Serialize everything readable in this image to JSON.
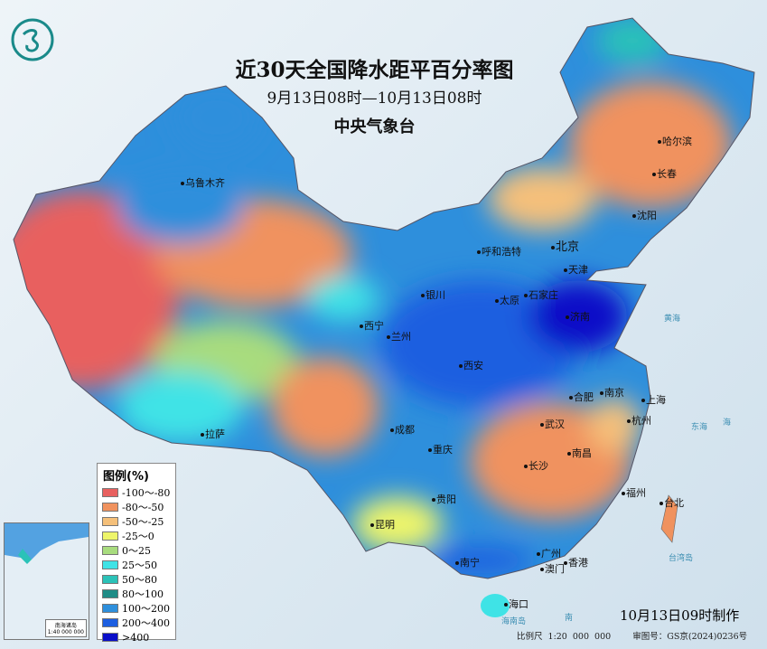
{
  "header": {
    "title": "近30天全国降水距平百分率图",
    "period": "9月13日08时—10月13日08时",
    "issuer": "中央气象台"
  },
  "legend": {
    "title": "图例(%)",
    "items": [
      {
        "label": "-100～-80",
        "color": "#e8605f"
      },
      {
        "label": "-80～-50",
        "color": "#f0925e"
      },
      {
        "label": "-50～-25",
        "color": "#f5c07a"
      },
      {
        "label": "-25～0",
        "color": "#eef56a"
      },
      {
        "label": "0～25",
        "color": "#a8dc7e"
      },
      {
        "label": "25～50",
        "color": "#3fe3e6"
      },
      {
        "label": "50～80",
        "color": "#2bc2b8"
      },
      {
        "label": "80～100",
        "color": "#1f8c86"
      },
      {
        "label": "100～200",
        "color": "#2e8fdc"
      },
      {
        "label": "200～400",
        "color": "#1c5ee0"
      },
      {
        "label": ">400",
        "color": "#0a0ec8"
      }
    ]
  },
  "cities": [
    {
      "name": "乌鲁木齐"
    },
    {
      "name": "哈尔滨"
    },
    {
      "name": "长春"
    },
    {
      "name": "沈阳"
    },
    {
      "name": "呼和浩特"
    },
    {
      "name": "北京"
    },
    {
      "name": "天津"
    },
    {
      "name": "银川"
    },
    {
      "name": "太原"
    },
    {
      "name": "石家庄"
    },
    {
      "name": "济南"
    },
    {
      "name": "西宁"
    },
    {
      "name": "兰州"
    },
    {
      "name": "西安"
    },
    {
      "name": "合肥"
    },
    {
      "name": "南京"
    },
    {
      "name": "上海"
    },
    {
      "name": "杭州"
    },
    {
      "name": "武汉"
    },
    {
      "name": "成都"
    },
    {
      "name": "重庆"
    },
    {
      "name": "拉萨"
    },
    {
      "name": "长沙"
    },
    {
      "name": "南昌"
    },
    {
      "name": "福州"
    },
    {
      "name": "台北"
    },
    {
      "name": "贵阳"
    },
    {
      "name": "昆明"
    },
    {
      "name": "南宁"
    },
    {
      "name": "广州"
    },
    {
      "name": "香港"
    },
    {
      "name": "澳门"
    },
    {
      "name": "海口"
    }
  ],
  "seas": [
    "黄海",
    "东海",
    "海",
    "台湾岛",
    "海南岛",
    "南"
  ],
  "inset": {
    "title": "南海诸岛",
    "scale": "1:40 000 000"
  },
  "footer": {
    "made": "10月13日09时制作",
    "scale": "比例尺 1:20 000 000",
    "approval": "审图号：GS京(2024)0236号"
  }
}
